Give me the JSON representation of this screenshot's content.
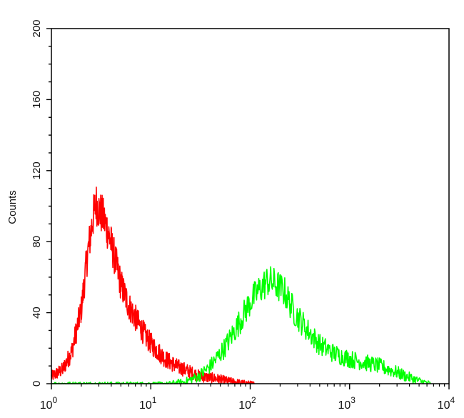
{
  "chart_data": {
    "type": "line",
    "title": "",
    "xlabel": "",
    "ylabel": "Counts",
    "x_scale": "log",
    "xlim": [
      1,
      10000
    ],
    "ylim": [
      0,
      200
    ],
    "x_ticks": [
      {
        "base": "10",
        "exp": "0",
        "value": 1
      },
      {
        "base": "10",
        "exp": "1",
        "value": 10
      },
      {
        "base": "10",
        "exp": "2",
        "value": 100
      },
      {
        "base": "10",
        "exp": "3",
        "value": 1000
      },
      {
        "base": "10",
        "exp": "4",
        "value": 10000
      }
    ],
    "y_ticks": [
      "0",
      "40",
      "80",
      "120",
      "160",
      "200"
    ],
    "grid": false,
    "series": [
      {
        "color": "#ff0000",
        "x": [
          1.0,
          1.3,
          1.6,
          2.0,
          2.3,
          2.6,
          2.8,
          3.0,
          3.3,
          3.7,
          4.2,
          5.0,
          6.0,
          7.5,
          9.0,
          11,
          14,
          18,
          24,
          32,
          45,
          60,
          80,
          110
        ],
        "y": [
          4,
          8,
          18,
          42,
          72,
          92,
          102,
          98,
          94,
          86,
          74,
          56,
          44,
          34,
          26,
          20,
          14,
          10,
          7,
          4,
          3,
          1.5,
          0.5,
          0
        ]
      },
      {
        "color": "#00ff00",
        "x": [
          1,
          5,
          15,
          22,
          30,
          40,
          55,
          75,
          100,
          120,
          150,
          180,
          220,
          280,
          380,
          500,
          700,
          1000,
          1400,
          2000,
          2800,
          3800,
          5000,
          6500
        ],
        "y": [
          0,
          0,
          0,
          1,
          4,
          10,
          20,
          33,
          46,
          52,
          58,
          56,
          52,
          40,
          30,
          22,
          17,
          14,
          12,
          10,
          7,
          4,
          1.5,
          0
        ]
      }
    ]
  }
}
